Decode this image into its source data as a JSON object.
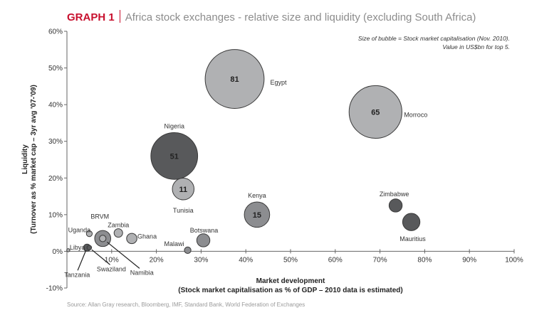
{
  "header": {
    "graph_number": "GRAPH 1",
    "title": "Africa stock exchanges - relative size and liquidity (excluding South Africa)"
  },
  "note": [
    "Size of bubble = Stock market capitalisation (Nov. 2010).",
    "Value in US$bn for top 5."
  ],
  "source": "Source: Allan Gray research, Bloomberg, IMF, Standard Bank, World Federation of Exchanges",
  "colors": {
    "accent": "#c8102e",
    "light": "#b0b1b3",
    "mid": "#8c8d90",
    "dark": "#58595b",
    "darker": "#4a4b4d"
  },
  "chart_data": {
    "type": "scatter",
    "subtype": "bubble",
    "xlabel": [
      "Market development",
      "(Stock market capitalisation as % of GDP – 2010 data is estimated)"
    ],
    "ylabel": [
      "Liquidity",
      "(Turnover as % market cap – 3yr avg '07-'09)"
    ],
    "xlim": [
      0,
      100
    ],
    "ylim": [
      -10,
      60
    ],
    "x_ticks": [
      "10%",
      "20%",
      "30%",
      "40%",
      "50%",
      "60%",
      "70%",
      "80%",
      "90%",
      "100%"
    ],
    "y_ticks": [
      "-10%",
      "0%",
      "10%",
      "20%",
      "30%",
      "40%",
      "50%",
      "60%"
    ],
    "grid": false,
    "points": [
      {
        "name": "Egypt",
        "x": 37.5,
        "y": 47,
        "size": 81,
        "value_label": "81",
        "color": "light"
      },
      {
        "name": "Morroco",
        "x": 69,
        "y": 38,
        "size": 65,
        "value_label": "65",
        "color": "light"
      },
      {
        "name": "Nigeria",
        "x": 24,
        "y": 26,
        "size": 51,
        "value_label": "51",
        "color": "dark"
      },
      {
        "name": "Tunisia",
        "x": 26,
        "y": 17,
        "size": 11,
        "value_label": "11",
        "color": "light"
      },
      {
        "name": "Kenya",
        "x": 42.5,
        "y": 10,
        "size": 15,
        "value_label": "15",
        "color": "mid"
      },
      {
        "name": "Zimbabwe",
        "x": 73.5,
        "y": 12.5,
        "size": 4,
        "value_label": "",
        "color": "dark"
      },
      {
        "name": "Mauritius",
        "x": 77,
        "y": 8,
        "size": 7,
        "value_label": "",
        "color": "dark"
      },
      {
        "name": "Botswana",
        "x": 30.5,
        "y": 3,
        "size": 4,
        "value_label": "",
        "color": "mid"
      },
      {
        "name": "Malawi",
        "x": 27,
        "y": 0.3,
        "size": 1,
        "value_label": "",
        "color": "mid"
      },
      {
        "name": "Ghana",
        "x": 14.5,
        "y": 3.5,
        "size": 2.5,
        "value_label": "",
        "color": "light"
      },
      {
        "name": "Zambia",
        "x": 11.5,
        "y": 5,
        "size": 1.7,
        "value_label": "",
        "color": "light"
      },
      {
        "name": "Uganda",
        "x": 5,
        "y": 4.8,
        "size": 0.8,
        "value_label": "",
        "color": "light"
      },
      {
        "name": "BRVM",
        "x": 8,
        "y": 3.5,
        "size": 6,
        "value_label": "",
        "color": "mid"
      },
      {
        "name": "Namibia",
        "x": 8,
        "y": 3.5,
        "size": 1,
        "value_label": "",
        "color": "light"
      },
      {
        "name": "Tanzania",
        "x": 4.5,
        "y": 1,
        "size": 1.2,
        "value_label": "",
        "color": "dark"
      },
      {
        "name": "Swaziland",
        "x": 5,
        "y": 1,
        "size": 0.5,
        "value_label": "",
        "color": "dark"
      },
      {
        "name": "Libya",
        "x": 0.3,
        "y": 0.3,
        "size": 0.1,
        "value_label": "",
        "color": "light"
      }
    ]
  }
}
